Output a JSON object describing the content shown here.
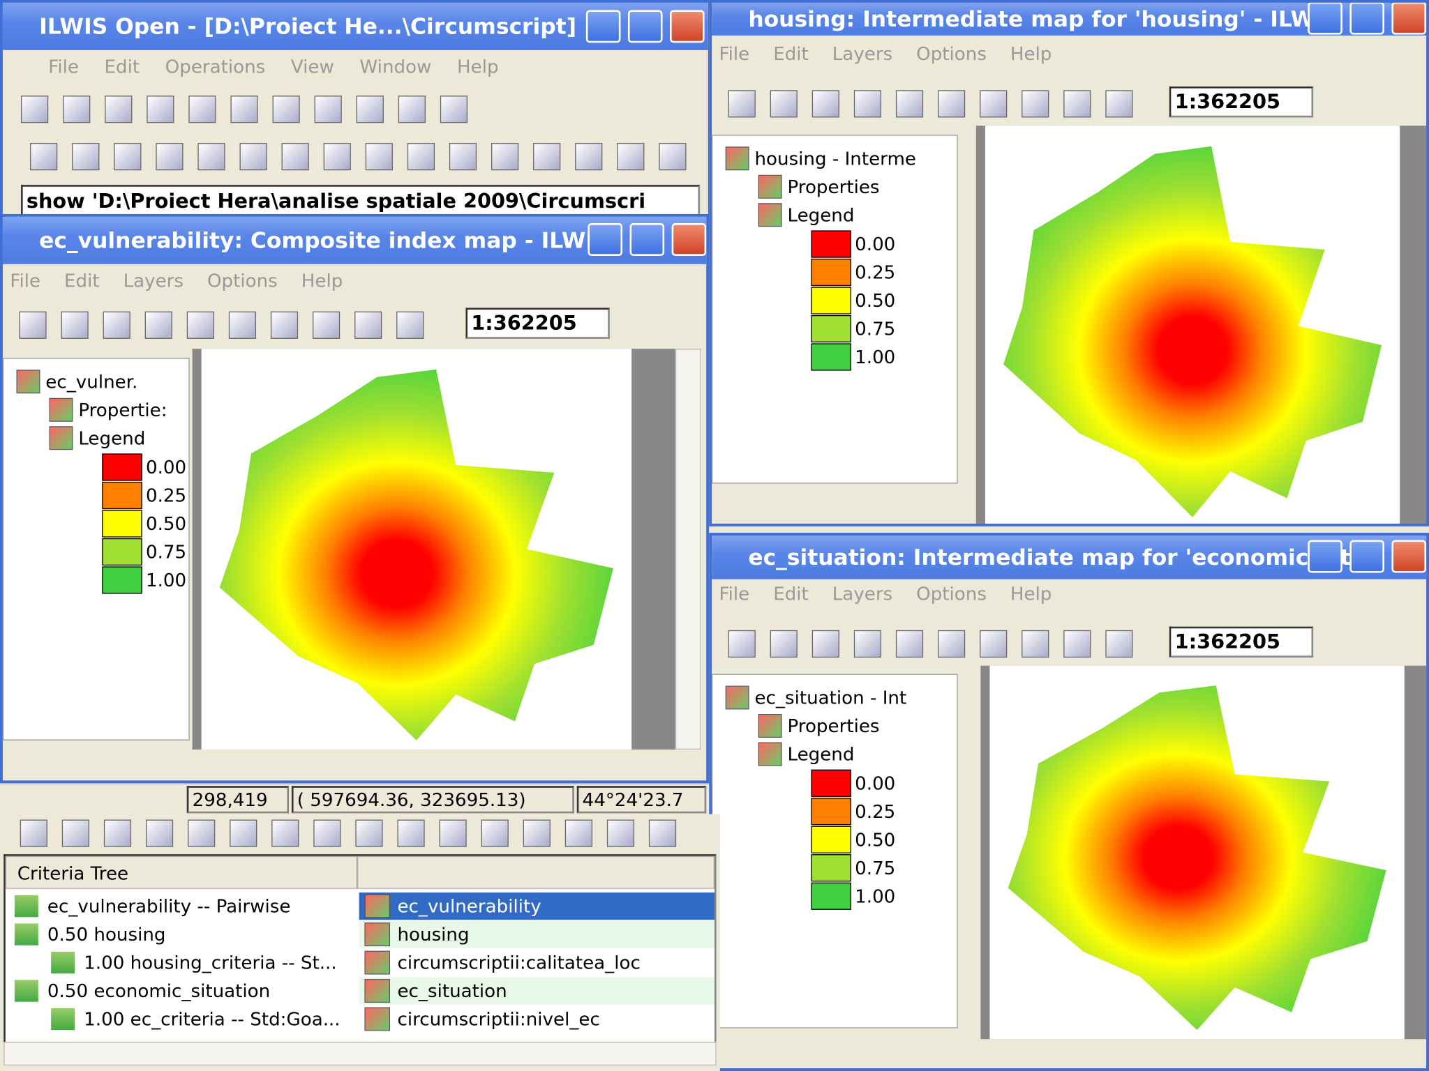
{
  "main_window": {
    "title": "ILWIS Open - [D:\\Proiect He...\\Circumscript]",
    "menu": [
      "File",
      "Edit",
      "Operations",
      "View",
      "Window",
      "Help"
    ],
    "command": "show 'D:\\Proiect Hera\\analise spatiale 2009\\Circumscri"
  },
  "map_windows": [
    {
      "title": "ec_vulnerability: Composite index map - ILWIS",
      "menu": [
        "File",
        "Edit",
        "Layers",
        "Options",
        "Help"
      ],
      "scale": "1:362205",
      "layer": "ec_vulner.",
      "properties": "Propertie:",
      "legend_title": "Legend",
      "legend": [
        {
          "label": "0.00",
          "color": "#ff0000"
        },
        {
          "label": "0.25",
          "color": "#ff8000"
        },
        {
          "label": "0.50",
          "color": "#ffff00"
        },
        {
          "label": "0.75",
          "color": "#a0e030"
        },
        {
          "label": "1.00",
          "color": "#40d040"
        }
      ]
    },
    {
      "title": "housing: Intermediate map for 'housing' - ILWIS",
      "menu": [
        "File",
        "Edit",
        "Layers",
        "Options",
        "Help"
      ],
      "scale": "1:362205",
      "layer": "housing - Interme",
      "properties": "Properties",
      "legend_title": "Legend",
      "legend": [
        {
          "label": "0.00",
          "color": "#ff0000"
        },
        {
          "label": "0.25",
          "color": "#ff8000"
        },
        {
          "label": "0.50",
          "color": "#ffff00"
        },
        {
          "label": "0.75",
          "color": "#a0e030"
        },
        {
          "label": "1.00",
          "color": "#40d040"
        }
      ]
    },
    {
      "title": "ec_situation: Intermediate map for 'economic_sit...",
      "menu": [
        "File",
        "Edit",
        "Layers",
        "Options",
        "Help"
      ],
      "scale": "1:362205",
      "layer": "ec_situation - Int",
      "properties": "Properties",
      "legend_title": "Legend",
      "legend": [
        {
          "label": "0.00",
          "color": "#ff0000"
        },
        {
          "label": "0.25",
          "color": "#ff8000"
        },
        {
          "label": "0.50",
          "color": "#ffff00"
        },
        {
          "label": "0.75",
          "color": "#a0e030"
        },
        {
          "label": "1.00",
          "color": "#40d040"
        }
      ]
    }
  ],
  "status_bar": [
    "298,419",
    "( 597694.36, 323695.13)",
    "44°24'23.7"
  ],
  "criteria_tree": {
    "header": "Criteria Tree",
    "rows": [
      [
        "ec_vulnerability -- Pairwise",
        "ec_vulnerability"
      ],
      [
        "0.50 housing",
        "housing"
      ],
      [
        "1.00 housing_criteria -- St...",
        "circumscriptii:calitatea_loc"
      ],
      [
        "0.50 economic_situation",
        "ec_situation"
      ],
      [
        "1.00 ec_criteria -- Std:Goa...",
        "circumscriptii:nivel_ec"
      ]
    ]
  }
}
